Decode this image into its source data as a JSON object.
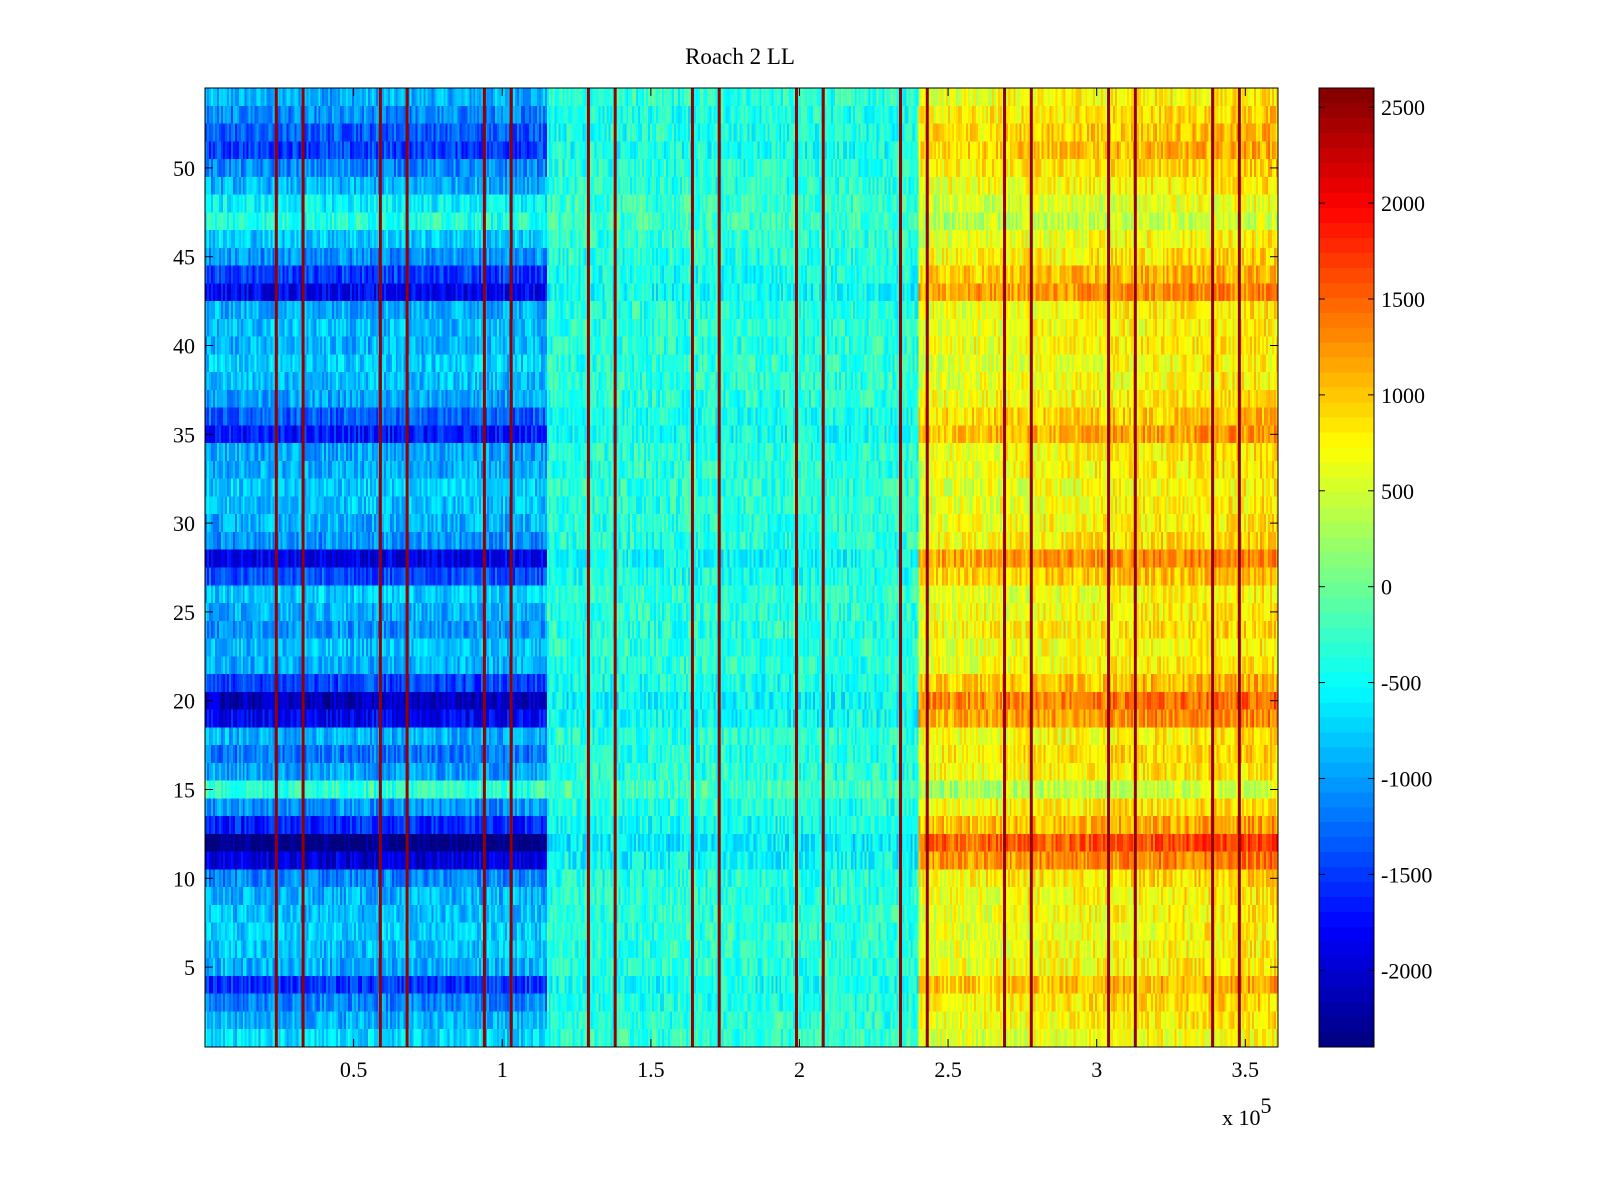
{
  "chart_data": {
    "type": "heatmap",
    "title": "Roach 2 LL",
    "xlabel": "",
    "ylabel": "",
    "x_range": [
      0,
      361000
    ],
    "y_range": [
      0.5,
      54.5
    ],
    "rows": 54,
    "xticks": [
      {
        "value": 50000,
        "label": "0.5"
      },
      {
        "value": 100000,
        "label": "1"
      },
      {
        "value": 150000,
        "label": "1.5"
      },
      {
        "value": 200000,
        "label": "2"
      },
      {
        "value": 250000,
        "label": "2.5"
      },
      {
        "value": 300000,
        "label": "3"
      },
      {
        "value": 350000,
        "label": "3.5"
      }
    ],
    "x_multiplier": {
      "base": "x 10",
      "exponent": "5"
    },
    "yticks": [
      {
        "value": 5,
        "label": "5"
      },
      {
        "value": 10,
        "label": "10"
      },
      {
        "value": 15,
        "label": "15"
      },
      {
        "value": 20,
        "label": "20"
      },
      {
        "value": 25,
        "label": "25"
      },
      {
        "value": 30,
        "label": "30"
      },
      {
        "value": 35,
        "label": "35"
      },
      {
        "value": 40,
        "label": "40"
      },
      {
        "value": 45,
        "label": "45"
      },
      {
        "value": 50,
        "label": "50"
      }
    ],
    "colorbar": {
      "min": -2400,
      "max": 2600,
      "colormap": "jet",
      "ticks": [
        {
          "value": 2500,
          "label": "2500"
        },
        {
          "value": 2000,
          "label": "2000"
        },
        {
          "value": 1500,
          "label": "1500"
        },
        {
          "value": 1000,
          "label": "1000"
        },
        {
          "value": 500,
          "label": "500"
        },
        {
          "value": 0,
          "label": "0"
        },
        {
          "value": -500,
          "label": "-500"
        },
        {
          "value": -1000,
          "label": "-1000"
        },
        {
          "value": -1500,
          "label": "-1500"
        },
        {
          "value": -2000,
          "label": "-2000"
        }
      ]
    },
    "segment_boundaries_x": [
      24000,
      33000,
      59000,
      68000,
      94000,
      103000,
      129000,
      138000,
      164000,
      173000,
      199000,
      208000,
      234000,
      243000,
      269000,
      278000,
      304000,
      313000,
      339000,
      348000
    ],
    "boundary_value": 2500,
    "regimes": [
      {
        "x_start": 0,
        "x_end": 115000,
        "typical_value": -700
      },
      {
        "x_start": 115000,
        "x_end": 240000,
        "typical_value": -300
      },
      {
        "x_start": 240000,
        "x_end": 361000,
        "typical_value": 500
      }
    ],
    "row_profile": {
      "1": 0,
      "2": -0.3,
      "3": -0.6,
      "4": -1.2,
      "5": -0.3,
      "6": -0.2,
      "7": -0.1,
      "8": -0.2,
      "9": -0.3,
      "10": -0.6,
      "11": -1.8,
      "12": -2.5,
      "13": -1.3,
      "14": -0.5,
      "15": 0.6,
      "16": -0.4,
      "17": -0.7,
      "18": -0.3,
      "19": -1.6,
      "20": -2.0,
      "21": -1.1,
      "22": -0.3,
      "23": -0.2,
      "24": -0.5,
      "25": -0.3,
      "26": -0.1,
      "27": -1.0,
      "28": -1.7,
      "29": -0.5,
      "30": -0.3,
      "31": -0.2,
      "32": -0.1,
      "33": -0.3,
      "34": -0.4,
      "35": -1.4,
      "36": -0.9,
      "37": -0.4,
      "38": -0.2,
      "39": -0.1,
      "40": -0.3,
      "41": -0.2,
      "42": -0.3,
      "43": -1.6,
      "44": -1.1,
      "45": -0.5,
      "46": -0.1,
      "47": 0.5,
      "48": 0.2,
      "49": -0.3,
      "50": -0.6,
      "51": -1.1,
      "52": -0.9,
      "53": -0.6,
      "54": -0.3
    },
    "grid": false
  }
}
